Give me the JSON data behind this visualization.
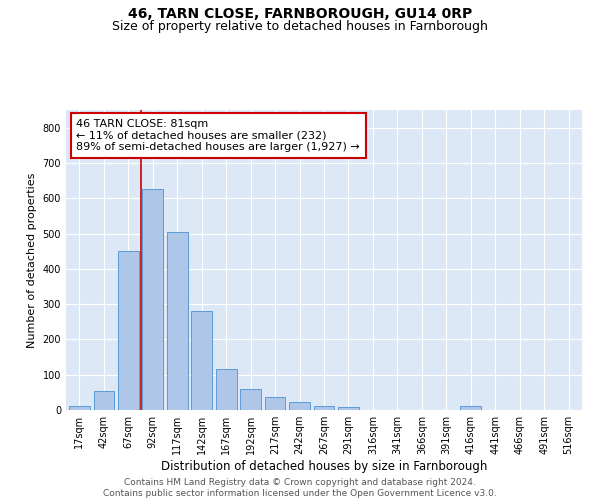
{
  "title1": "46, TARN CLOSE, FARNBOROUGH, GU14 0RP",
  "title2": "Size of property relative to detached houses in Farnborough",
  "xlabel": "Distribution of detached houses by size in Farnborough",
  "ylabel": "Number of detached properties",
  "bar_labels": [
    "17sqm",
    "42sqm",
    "67sqm",
    "92sqm",
    "117sqm",
    "142sqm",
    "167sqm",
    "192sqm",
    "217sqm",
    "242sqm",
    "267sqm",
    "291sqm",
    "316sqm",
    "341sqm",
    "366sqm",
    "391sqm",
    "416sqm",
    "441sqm",
    "466sqm",
    "491sqm",
    "516sqm"
  ],
  "bar_values": [
    12,
    55,
    450,
    625,
    505,
    280,
    115,
    60,
    37,
    22,
    10,
    8,
    0,
    0,
    0,
    0,
    10,
    0,
    0,
    0,
    0
  ],
  "bar_color": "#aec6e8",
  "bar_edge_color": "#5a9bd5",
  "annotation_text": "46 TARN CLOSE: 81sqm\n← 11% of detached houses are smaller (232)\n89% of semi-detached houses are larger (1,927) →",
  "vline_x": 2.5,
  "vline_color": "#cc0000",
  "annotation_box_color": "#ffffff",
  "annotation_box_edgecolor": "#cc0000",
  "ylim": [
    0,
    850
  ],
  "yticks": [
    0,
    100,
    200,
    300,
    400,
    500,
    600,
    700,
    800
  ],
  "background_color": "#dce8f5",
  "footer_text": "Contains HM Land Registry data © Crown copyright and database right 2024.\nContains public sector information licensed under the Open Government Licence v3.0.",
  "title_fontsize": 10,
  "subtitle_fontsize": 9,
  "xlabel_fontsize": 8.5,
  "ylabel_fontsize": 8,
  "tick_fontsize": 7,
  "annotation_fontsize": 8,
  "footer_fontsize": 6.5
}
